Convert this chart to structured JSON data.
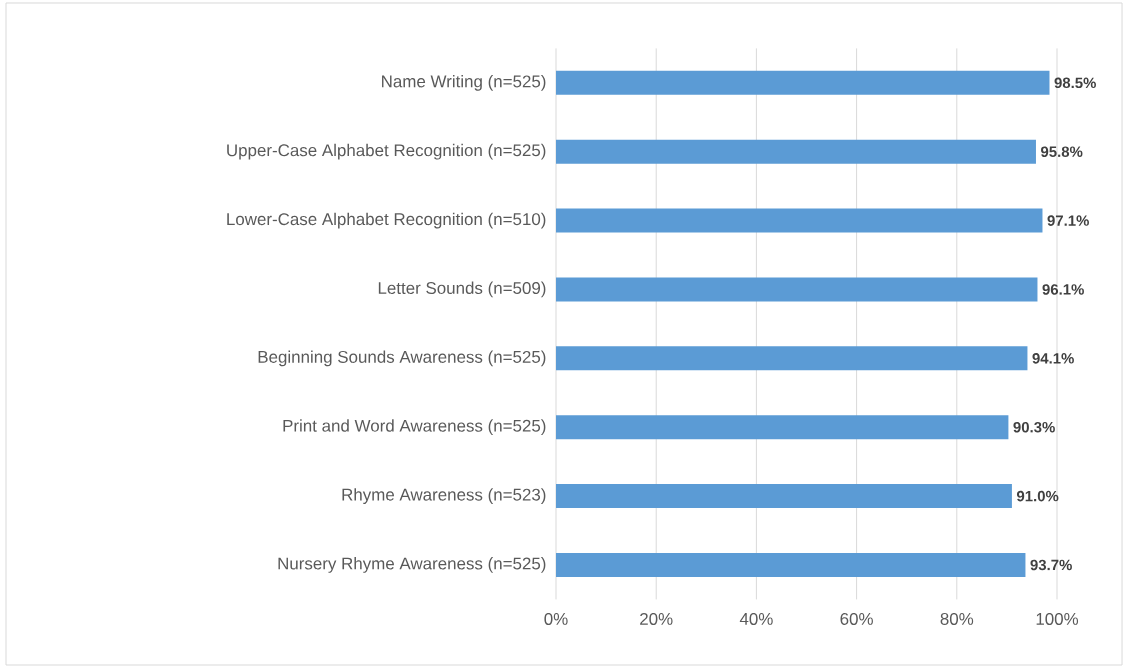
{
  "chart_data": {
    "type": "bar",
    "orientation": "horizontal",
    "categories": [
      "Name Writing (n=525)",
      "Upper-Case Alphabet Recognition (n=525)",
      "Lower-Case Alphabet Recognition (n=510)",
      "Letter Sounds (n=509)",
      "Beginning Sounds Awareness (n=525)",
      "Print and Word Awareness (n=525)",
      "Rhyme Awareness (n=523)",
      "Nursery Rhyme Awareness (n=525)"
    ],
    "values": [
      98.5,
      95.8,
      97.1,
      96.1,
      94.1,
      90.3,
      91.0,
      93.7
    ],
    "value_labels": [
      "98.5%",
      "95.8%",
      "97.1%",
      "96.1%",
      "94.1%",
      "90.3%",
      "91.0%",
      "93.7%"
    ],
    "color": "#5b9bd5",
    "xlim": [
      0,
      100
    ],
    "xticks": [
      {
        "value": 0,
        "label": "0%"
      },
      {
        "value": 20,
        "label": "20%"
      },
      {
        "value": 40,
        "label": "40%"
      },
      {
        "value": 60,
        "label": "60%"
      },
      {
        "value": 80,
        "label": "80%"
      },
      {
        "value": 100,
        "label": "100%"
      }
    ],
    "grid": "x"
  }
}
